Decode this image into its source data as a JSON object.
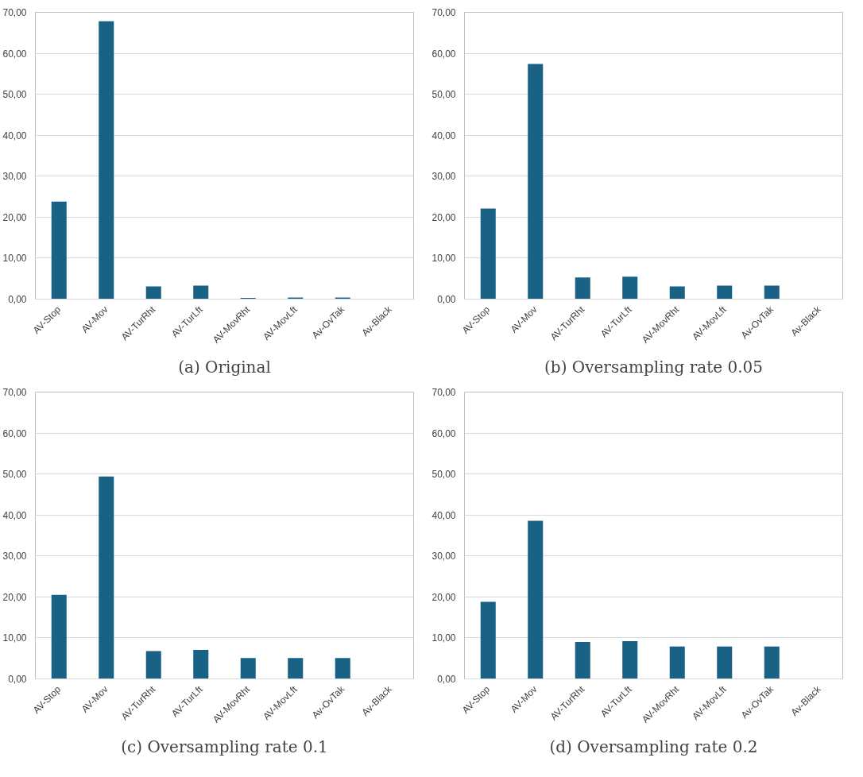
{
  "chart_data": [
    {
      "type": "bar",
      "title": "(a) Original",
      "categories": [
        "AV-Stop",
        "AV-Mov",
        "AV-TurRht",
        "AV-TurLft",
        "AV-MovRht",
        "AV-MovLft",
        "Av-OvTak",
        "Av-Black"
      ],
      "values": [
        23.8,
        67.8,
        3.1,
        3.3,
        0.3,
        0.4,
        0.4,
        0
      ],
      "color": "#1a6285",
      "ylim": [
        0,
        70
      ],
      "yticks": [
        {
          "value": 0,
          "label": "0,00"
        },
        {
          "value": 10,
          "label": "10,00"
        },
        {
          "value": 20,
          "label": "20,00"
        },
        {
          "value": 30,
          "label": "30,00"
        },
        {
          "value": 40,
          "label": "40,00"
        },
        {
          "value": 50,
          "label": "50,00"
        },
        {
          "value": 60,
          "label": "60,00"
        },
        {
          "value": 70,
          "label": "70,00"
        }
      ],
      "grid": "y"
    },
    {
      "type": "bar",
      "title": "(b) Oversampling rate 0.05",
      "categories": [
        "AV-Stop",
        "AV-Mov",
        "AV-TurRht",
        "AV-TurLft",
        "AV-MovRht",
        "AV-MovLft",
        "Av-OvTak",
        "Av-Black"
      ],
      "values": [
        22.1,
        57.4,
        5.3,
        5.5,
        3.1,
        3.3,
        3.3,
        0
      ],
      "color": "#1a6285",
      "ylim": [
        0,
        70
      ],
      "yticks": [
        {
          "value": 0,
          "label": "0,00"
        },
        {
          "value": 10,
          "label": "10,00"
        },
        {
          "value": 20,
          "label": "20,00"
        },
        {
          "value": 30,
          "label": "30,00"
        },
        {
          "value": 40,
          "label": "40,00"
        },
        {
          "value": 50,
          "label": "50,00"
        },
        {
          "value": 60,
          "label": "60,00"
        },
        {
          "value": 70,
          "label": "70,00"
        }
      ],
      "grid": "y"
    },
    {
      "type": "bar",
      "title": "(c) Oversampling rate 0.1",
      "categories": [
        "AV-Stop",
        "AV-Mov",
        "AV-TurRht",
        "AV-TurLft",
        "AV-MovRht",
        "AV-MovLft",
        "Av-OvTak",
        "Av-Black"
      ],
      "values": [
        20.5,
        49.4,
        6.8,
        7.1,
        5.1,
        5.1,
        5.1,
        0
      ],
      "color": "#1a6285",
      "ylim": [
        0,
        70
      ],
      "yticks": [
        {
          "value": 0,
          "label": "0,00"
        },
        {
          "value": 10,
          "label": "10,00"
        },
        {
          "value": 20,
          "label": "20,00"
        },
        {
          "value": 30,
          "label": "30,00"
        },
        {
          "value": 40,
          "label": "40,00"
        },
        {
          "value": 50,
          "label": "50,00"
        },
        {
          "value": 60,
          "label": "60,00"
        },
        {
          "value": 70,
          "label": "70,00"
        }
      ],
      "grid": "y"
    },
    {
      "type": "bar",
      "title": "(d) Oversampling rate 0.2",
      "categories": [
        "AV-Stop",
        "AV-Mov",
        "AV-TurRht",
        "AV-TurLft",
        "AV-MovRht",
        "AV-MovLft",
        "Av-OvTak",
        "Av-Black"
      ],
      "values": [
        18.8,
        38.6,
        9.0,
        9.2,
        7.9,
        7.9,
        7.9,
        0
      ],
      "color": "#1a6285",
      "ylim": [
        0,
        70
      ],
      "yticks": [
        {
          "value": 0,
          "label": "0,00"
        },
        {
          "value": 10,
          "label": "10,00"
        },
        {
          "value": 20,
          "label": "20,00"
        },
        {
          "value": 30,
          "label": "30,00"
        },
        {
          "value": 40,
          "label": "40,00"
        },
        {
          "value": 50,
          "label": "50,00"
        },
        {
          "value": 60,
          "label": "60,00"
        },
        {
          "value": 70,
          "label": "70,00"
        }
      ],
      "grid": "y"
    }
  ]
}
